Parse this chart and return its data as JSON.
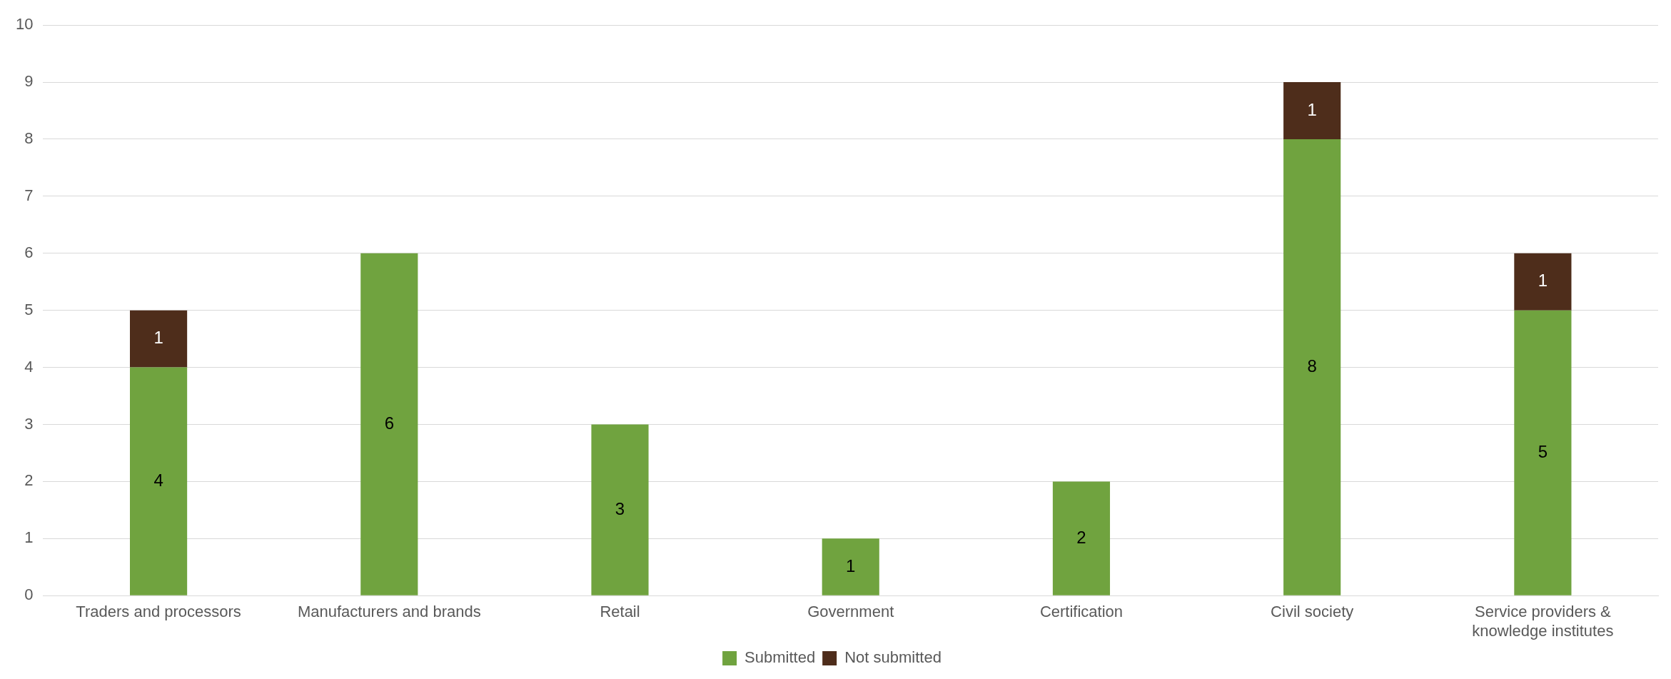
{
  "chart_data": {
    "type": "bar",
    "stacked": true,
    "categories": [
      "Traders and processors",
      "Manufacturers and brands",
      "Retail",
      "Government",
      "Certification",
      "Civil society",
      "Service providers & knowledge institutes"
    ],
    "series": [
      {
        "name": "Submitted",
        "color": "#70a33f",
        "values": [
          4,
          6,
          3,
          1,
          2,
          8,
          5
        ]
      },
      {
        "name": "Not submitted",
        "color": "#4e2d1b",
        "values": [
          1,
          null,
          null,
          null,
          null,
          1,
          1
        ]
      }
    ],
    "ylim": [
      0,
      10
    ],
    "yticks": [
      0,
      1,
      2,
      3,
      4,
      5,
      6,
      7,
      8,
      9,
      10
    ],
    "grid": "y",
    "legend": "bottom",
    "data_labels": true
  }
}
